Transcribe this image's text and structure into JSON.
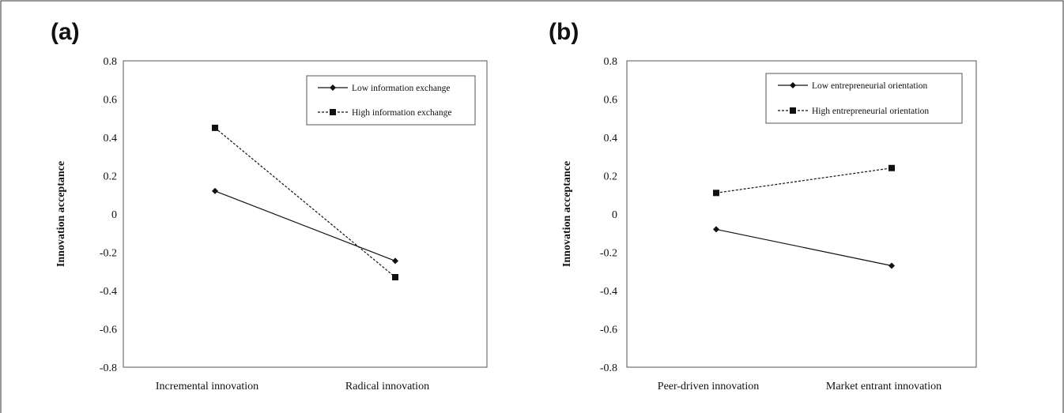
{
  "charts": [
    {
      "panel_label": "(a)",
      "ylabel": "Innovation acceptance",
      "categories": [
        "Incremental innovation",
        "Radical innovation"
      ],
      "yticks": [
        "0.8",
        "0.6",
        "0.4",
        "0.2",
        "0",
        "-0.2",
        "-0.4",
        "-0.6",
        "-0.8"
      ],
      "legend": [
        "Low information exchange",
        "High information exchange"
      ]
    },
    {
      "panel_label": "(b)",
      "ylabel": "Innovation acceptance",
      "categories": [
        "Peer-driven innovation",
        "Market entrant innovation"
      ],
      "yticks": [
        "0.8",
        "0.6",
        "0.4",
        "0.2",
        "0",
        "-0.2",
        "-0.4",
        "-0.6",
        "-0.8"
      ],
      "legend": [
        "Low entrepreneurial orientation",
        "High entrepreneurial orientation"
      ]
    }
  ],
  "chart_data": [
    {
      "type": "line",
      "categories": [
        "Incremental innovation",
        "Radical innovation"
      ],
      "series": [
        {
          "name": "Low information exchange",
          "values": [
            0.12,
            -0.245
          ],
          "style": "solid",
          "marker": "diamond"
        },
        {
          "name": "High information exchange",
          "values": [
            0.45,
            -0.33
          ],
          "style": "dashed",
          "marker": "square"
        }
      ],
      "ylabel": "Innovation acceptance",
      "ylim": [
        -0.8,
        0.8
      ],
      "yticks": [
        0.8,
        0.6,
        0.4,
        0.2,
        0,
        -0.2,
        -0.4,
        -0.6,
        -0.8
      ],
      "legend_position": "top-right",
      "grid": false
    },
    {
      "type": "line",
      "categories": [
        "Peer-driven innovation",
        "Market entrant innovation"
      ],
      "series": [
        {
          "name": "Low entrepreneurial orientation",
          "values": [
            -0.08,
            -0.27
          ],
          "style": "solid",
          "marker": "diamond"
        },
        {
          "name": "High entrepreneurial orientation",
          "values": [
            0.11,
            0.24
          ],
          "style": "dashed",
          "marker": "square"
        }
      ],
      "ylabel": "Innovation acceptance",
      "ylim": [
        -0.8,
        0.8
      ],
      "yticks": [
        0.8,
        0.6,
        0.4,
        0.2,
        0,
        -0.2,
        -0.4,
        -0.6,
        -0.8
      ],
      "legend_position": "top-right",
      "grid": false
    }
  ]
}
